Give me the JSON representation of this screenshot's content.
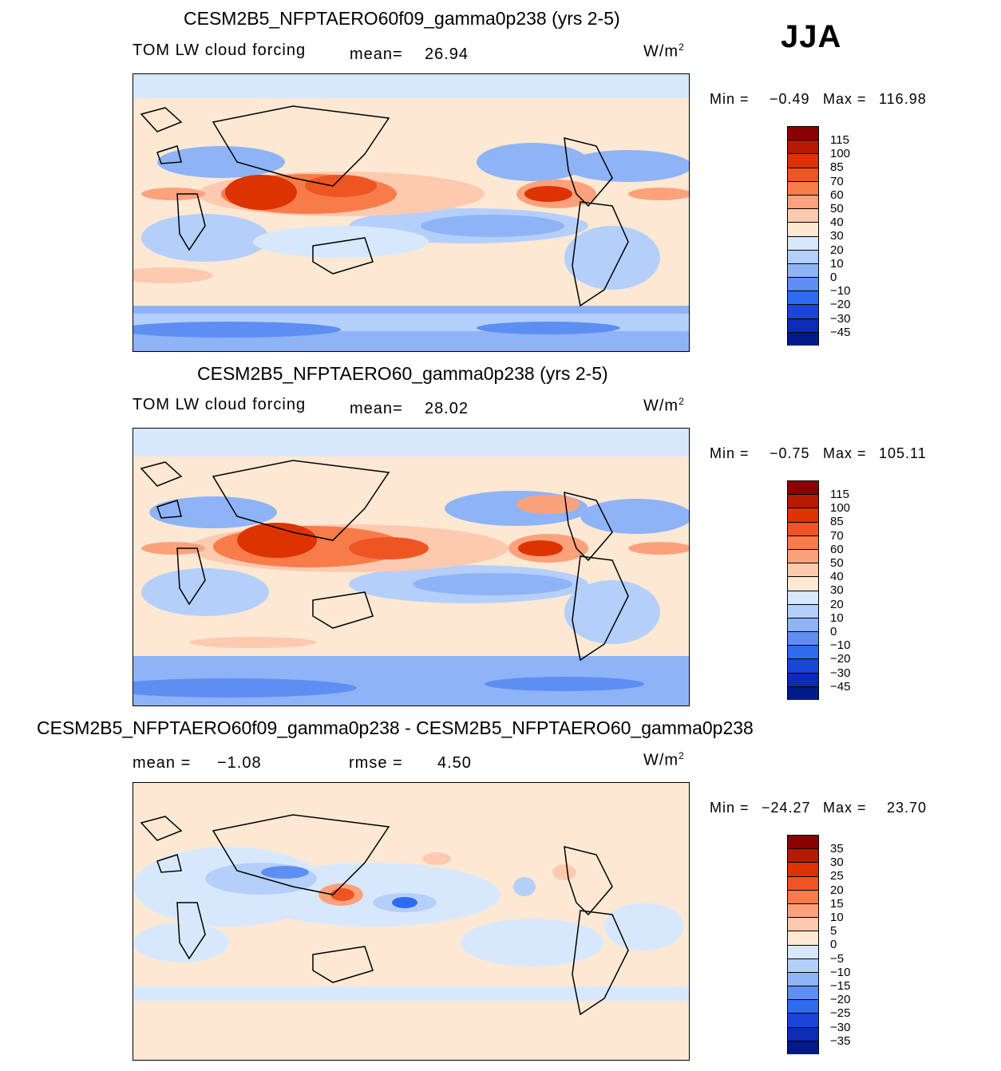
{
  "season": "JJA",
  "panels": [
    {
      "title": "CESM2B5_NFPTAERO60f09_gamma0p238 (yrs 2-5)",
      "left_label": "TOM LW cloud forcing",
      "stat1_label": "mean=",
      "stat1_value": "26.94",
      "stat2_label": "",
      "stat2_value": "",
      "units": "W/m",
      "units_sup": "2",
      "min_label": "Min =",
      "min_value": "−0.49",
      "max_label": "Max =",
      "max_value": "116.98",
      "colorbar_labels": [
        "115",
        "100",
        "85",
        "70",
        "60",
        "50",
        "40",
        "30",
        "20",
        "10",
        "0",
        "−10",
        "−20",
        "−30",
        "−45"
      ]
    },
    {
      "title": "CESM2B5_NFPTAERO60_gamma0p238 (yrs 2-5)",
      "left_label": "TOM LW cloud forcing",
      "stat1_label": "mean=",
      "stat1_value": "28.02",
      "stat2_label": "",
      "stat2_value": "",
      "units": "W/m",
      "units_sup": "2",
      "min_label": "Min =",
      "min_value": "−0.75",
      "max_label": "Max =",
      "max_value": "105.11",
      "colorbar_labels": [
        "115",
        "100",
        "85",
        "70",
        "60",
        "50",
        "40",
        "30",
        "20",
        "10",
        "0",
        "−10",
        "−20",
        "−30",
        "−45"
      ]
    },
    {
      "title": "CESM2B5_NFPTAERO60f09_gamma0p238 - CESM2B5_NFPTAERO60_gamma0p238",
      "left_label": "",
      "stat1_label": "mean =",
      "stat1_value": "−1.08",
      "stat2_label": "rmse =",
      "stat2_value": "4.50",
      "units": "W/m",
      "units_sup": "2",
      "min_label": "Min =",
      "min_value": "−24.27",
      "max_label": "Max =",
      "max_value": "23.70",
      "colorbar_labels": [
        "35",
        "30",
        "25",
        "20",
        "15",
        "10",
        "5",
        "0",
        "−5",
        "−10",
        "−15",
        "−20",
        "−25",
        "−30",
        "−35"
      ]
    }
  ],
  "colors": {
    "abs_scale": [
      "#8b0000",
      "#b51a00",
      "#dd3300",
      "#ee5522",
      "#f87c4a",
      "#fba27c",
      "#fdcab0",
      "#fde8d4",
      "#d8e8fc",
      "#b4cffa",
      "#8fb3f7",
      "#5d8ef2",
      "#2f6bee",
      "#1a45d8",
      "#0d2bb5",
      "#001a8a"
    ],
    "diff_scale": [
      "#8b0000",
      "#b51a00",
      "#dd3300",
      "#ee5522",
      "#f87c4a",
      "#fba27c",
      "#fdcab0",
      "#fde8d4",
      "#d8e8fc",
      "#b4cffa",
      "#8fb3f7",
      "#5d8ef2",
      "#2f6bee",
      "#1a45d8",
      "#0d2bb5",
      "#001a8a"
    ]
  },
  "chart_data": [
    {
      "type": "heatmap",
      "title": "CESM2B5_NFPTAERO60f09_gamma0p238 (yrs 2-5)",
      "variable": "TOM LW cloud forcing",
      "units": "W/m2",
      "mean": 26.94,
      "min": -0.49,
      "max": 116.98,
      "levels": [
        -45,
        -30,
        -20,
        -10,
        0,
        10,
        20,
        30,
        40,
        50,
        60,
        70,
        85,
        100,
        115
      ]
    },
    {
      "type": "heatmap",
      "title": "CESM2B5_NFPTAERO60_gamma0p238 (yrs 2-5)",
      "variable": "TOM LW cloud forcing",
      "units": "W/m2",
      "mean": 28.02,
      "min": -0.75,
      "max": 105.11,
      "levels": [
        -45,
        -30,
        -20,
        -10,
        0,
        10,
        20,
        30,
        40,
        50,
        60,
        70,
        85,
        100,
        115
      ]
    },
    {
      "type": "heatmap",
      "title": "CESM2B5_NFPTAERO60f09_gamma0p238 - CESM2B5_NFPTAERO60_gamma0p238",
      "units": "W/m2",
      "mean": -1.08,
      "rmse": 4.5,
      "min": -24.27,
      "max": 23.7,
      "levels": [
        -35,
        -30,
        -25,
        -20,
        -15,
        -10,
        -5,
        0,
        5,
        10,
        15,
        20,
        25,
        30,
        35
      ]
    }
  ]
}
